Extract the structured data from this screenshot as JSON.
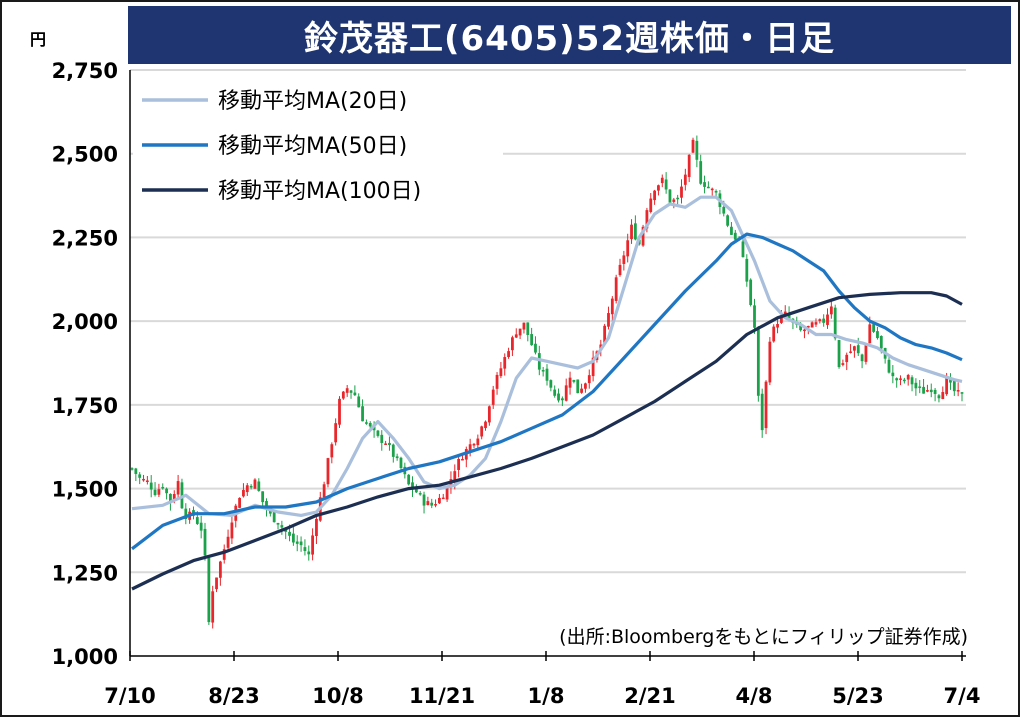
{
  "title": "鈴茂器工(6405)52週株価・日足",
  "unit": "円",
  "source": "(出所:Bloombergをもとにフィリップ証券作成)",
  "colors": {
    "title_bg": "#1f3571",
    "up": "#e8262b",
    "down": "#1aa14a",
    "ma20": "#a9bfdc",
    "ma50": "#1f77c4",
    "ma100": "#1c2f52",
    "grid": "#d9d9d9"
  },
  "chart_data": {
    "type": "candlestick",
    "title": "鈴茂器工(6405)52週株価・日足",
    "ylabel": "円",
    "ylim": [
      1000,
      2750
    ],
    "yticks": [
      1000,
      1250,
      1500,
      1750,
      2000,
      2250,
      2500,
      2750
    ],
    "ytick_labels": [
      "1,000",
      "1,250",
      "1,500",
      "1,750",
      "2,000",
      "2,250",
      "2,500",
      "2,750"
    ],
    "xticks": [
      "7/10",
      "8/23",
      "10/8",
      "11/21",
      "1/8",
      "2/21",
      "4/8",
      "5/23",
      "7/4"
    ],
    "legend": {
      "position": "top-left",
      "entries": [
        "移動平均MA(20日)",
        "移動平均MA(50日)",
        "移動平均MA(100日)"
      ]
    },
    "close_path": [
      [
        0,
        1560
      ],
      [
        2,
        1530
      ],
      [
        4,
        1520
      ],
      [
        6,
        1490
      ],
      [
        8,
        1510
      ],
      [
        10,
        1460
      ],
      [
        12,
        1520
      ],
      [
        13,
        1450
      ],
      [
        14,
        1420
      ],
      [
        16,
        1420
      ],
      [
        18,
        1380
      ],
      [
        19,
        1290
      ],
      [
        20,
        1100
      ],
      [
        21,
        1200
      ],
      [
        22,
        1240
      ],
      [
        24,
        1320
      ],
      [
        26,
        1410
      ],
      [
        28,
        1480
      ],
      [
        30,
        1510
      ],
      [
        32,
        1520
      ],
      [
        34,
        1460
      ],
      [
        36,
        1420
      ],
      [
        38,
        1400
      ],
      [
        40,
        1370
      ],
      [
        42,
        1340
      ],
      [
        44,
        1330
      ],
      [
        46,
        1300
      ],
      [
        48,
        1420
      ],
      [
        50,
        1520
      ],
      [
        52,
        1640
      ],
      [
        54,
        1760
      ],
      [
        56,
        1800
      ],
      [
        58,
        1780
      ],
      [
        60,
        1710
      ],
      [
        62,
        1680
      ],
      [
        64,
        1650
      ],
      [
        66,
        1640
      ],
      [
        68,
        1600
      ],
      [
        70,
        1560
      ],
      [
        72,
        1510
      ],
      [
        74,
        1490
      ],
      [
        76,
        1460
      ],
      [
        78,
        1450
      ],
      [
        80,
        1470
      ],
      [
        82,
        1500
      ],
      [
        84,
        1560
      ],
      [
        86,
        1600
      ],
      [
        88,
        1630
      ],
      [
        90,
        1660
      ],
      [
        92,
        1710
      ],
      [
        94,
        1800
      ],
      [
        96,
        1860
      ],
      [
        98,
        1920
      ],
      [
        100,
        1970
      ],
      [
        102,
        1990
      ],
      [
        104,
        1930
      ],
      [
        106,
        1860
      ],
      [
        108,
        1830
      ],
      [
        110,
        1780
      ],
      [
        112,
        1770
      ],
      [
        114,
        1840
      ],
      [
        116,
        1790
      ],
      [
        118,
        1820
      ],
      [
        120,
        1880
      ],
      [
        122,
        1930
      ],
      [
        124,
        2020
      ],
      [
        126,
        2120
      ],
      [
        128,
        2200
      ],
      [
        130,
        2280
      ],
      [
        132,
        2230
      ],
      [
        134,
        2340
      ],
      [
        136,
        2400
      ],
      [
        138,
        2420
      ],
      [
        140,
        2360
      ],
      [
        142,
        2360
      ],
      [
        144,
        2440
      ],
      [
        146,
        2530
      ],
      [
        148,
        2420
      ],
      [
        150,
        2400
      ],
      [
        152,
        2380
      ],
      [
        154,
        2320
      ],
      [
        156,
        2260
      ],
      [
        158,
        2240
      ],
      [
        160,
        2120
      ],
      [
        162,
        1980
      ],
      [
        163,
        1770
      ],
      [
        164,
        1680
      ],
      [
        166,
        1950
      ],
      [
        168,
        2000
      ],
      [
        170,
        2020
      ],
      [
        172,
        1990
      ],
      [
        174,
        1970
      ],
      [
        176,
        1980
      ],
      [
        178,
        1990
      ],
      [
        180,
        2000
      ],
      [
        182,
        2050
      ],
      [
        184,
        1860
      ],
      [
        186,
        1900
      ],
      [
        188,
        1920
      ],
      [
        190,
        1880
      ],
      [
        192,
        1990
      ],
      [
        194,
        1950
      ],
      [
        196,
        1880
      ],
      [
        198,
        1830
      ],
      [
        200,
        1820
      ],
      [
        202,
        1830
      ],
      [
        204,
        1800
      ],
      [
        206,
        1790
      ],
      [
        208,
        1800
      ],
      [
        210,
        1780
      ],
      [
        212,
        1820
      ],
      [
        214,
        1790
      ],
      [
        216,
        1775
      ]
    ],
    "series": [
      {
        "name": "移動平均MA(20日)",
        "x": [
          0,
          8,
          14,
          20,
          26,
          32,
          38,
          44,
          48,
          52,
          56,
          60,
          64,
          68,
          72,
          76,
          80,
          84,
          88,
          92,
          96,
          100,
          104,
          108,
          112,
          116,
          120,
          124,
          128,
          132,
          136,
          140,
          144,
          148,
          152,
          156,
          158,
          162,
          166,
          170,
          174,
          178,
          182,
          186,
          190,
          194,
          198,
          202,
          206,
          210,
          214,
          216
        ],
        "y": [
          1440,
          1450,
          1480,
          1425,
          1420,
          1450,
          1430,
          1420,
          1430,
          1480,
          1560,
          1650,
          1700,
          1650,
          1590,
          1520,
          1500,
          1510,
          1540,
          1590,
          1700,
          1830,
          1890,
          1880,
          1870,
          1860,
          1880,
          1950,
          2100,
          2250,
          2320,
          2350,
          2340,
          2370,
          2370,
          2330,
          2280,
          2180,
          2060,
          2010,
          1990,
          1960,
          1960,
          1945,
          1935,
          1920,
          1890,
          1870,
          1855,
          1840,
          1825,
          1820
        ]
      },
      {
        "name": "移動平均MA(50日)",
        "x": [
          0,
          8,
          16,
          24,
          32,
          40,
          48,
          56,
          64,
          72,
          80,
          88,
          96,
          104,
          112,
          120,
          128,
          136,
          144,
          152,
          156,
          160,
          164,
          168,
          172,
          176,
          180,
          184,
          188,
          192,
          196,
          200,
          204,
          208,
          212,
          216
        ],
        "y": [
          1320,
          1390,
          1425,
          1425,
          1445,
          1445,
          1460,
          1500,
          1530,
          1560,
          1580,
          1610,
          1640,
          1680,
          1720,
          1790,
          1890,
          1990,
          2090,
          2180,
          2230,
          2260,
          2250,
          2230,
          2210,
          2180,
          2150,
          2090,
          2040,
          2000,
          1980,
          1950,
          1930,
          1920,
          1905,
          1885
        ]
      },
      {
        "name": "移動平均MA(100日)",
        "x": [
          0,
          8,
          16,
          24,
          32,
          40,
          48,
          56,
          64,
          72,
          80,
          88,
          96,
          104,
          112,
          120,
          128,
          136,
          144,
          152,
          160,
          168,
          176,
          184,
          192,
          200,
          208,
          212,
          216
        ],
        "y": [
          1200,
          1245,
          1285,
          1310,
          1345,
          1380,
          1420,
          1445,
          1475,
          1500,
          1510,
          1535,
          1560,
          1590,
          1625,
          1660,
          1710,
          1760,
          1820,
          1880,
          1960,
          2010,
          2040,
          2070,
          2080,
          2085,
          2085,
          2075,
          2050
        ]
      }
    ]
  }
}
